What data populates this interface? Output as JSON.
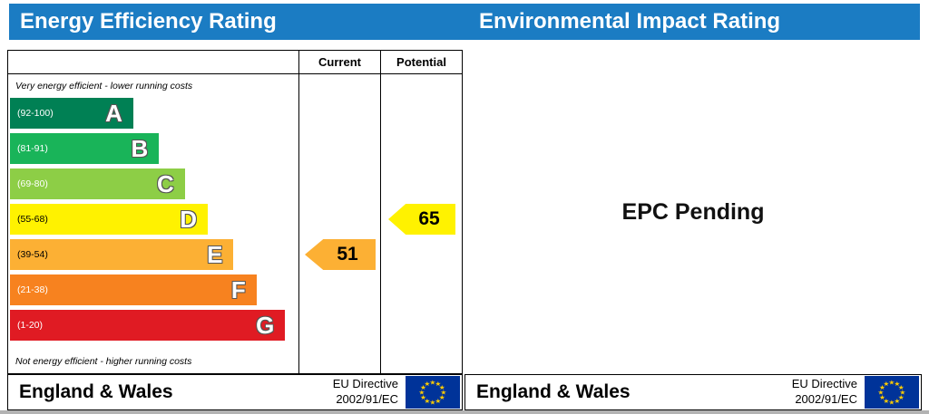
{
  "colors": {
    "header_blue": "#1b7cc3",
    "eu_flag_bg": "#003399",
    "eu_flag_star": "#ffcc00"
  },
  "left_panel": {
    "title": "Energy Efficiency Rating",
    "col_current": "Current",
    "col_potential": "Potential",
    "note_top": "Very energy efficient - lower running costs",
    "note_bottom": "Not energy efficient - higher running costs",
    "bands": [
      {
        "letter": "A",
        "range": "(92-100)",
        "color": "#008054",
        "range_text_color": "#ffffff",
        "width_pct": 43
      },
      {
        "letter": "B",
        "range": "(81-91)",
        "color": "#19b459",
        "range_text_color": "#ffffff",
        "width_pct": 52
      },
      {
        "letter": "C",
        "range": "(69-80)",
        "color": "#8dce46",
        "range_text_color": "#ffffff",
        "width_pct": 61
      },
      {
        "letter": "D",
        "range": "(55-68)",
        "color": "#fff200",
        "range_text_color": "#000000",
        "width_pct": 69
      },
      {
        "letter": "E",
        "range": "(39-54)",
        "color": "#fcb034",
        "range_text_color": "#000000",
        "width_pct": 78
      },
      {
        "letter": "F",
        "range": "(21-38)",
        "color": "#f7821f",
        "range_text_color": "#ffffff",
        "width_pct": 86
      },
      {
        "letter": "G",
        "range": "(1-20)",
        "color": "#e01b23",
        "range_text_color": "#ffffff",
        "width_pct": 96
      }
    ],
    "current": {
      "value": "51",
      "band": "E",
      "color": "#fcb034"
    },
    "potential": {
      "value": "65",
      "band": "D",
      "color": "#fff200"
    }
  },
  "right_panel": {
    "title": "Environmental Impact Rating",
    "pending": "EPC Pending"
  },
  "footer": {
    "region": "England & Wales",
    "directive_line1": "EU Directive",
    "directive_line2": "2002/91/EC"
  },
  "chart_data": {
    "type": "bar",
    "title": "Energy Efficiency Rating",
    "categories": [
      "A",
      "B",
      "C",
      "D",
      "E",
      "F",
      "G"
    ],
    "ranges": [
      "92-100",
      "81-91",
      "69-80",
      "55-68",
      "39-54",
      "21-38",
      "1-20"
    ],
    "bar_length_pct": [
      43,
      52,
      61,
      69,
      78,
      86,
      96
    ],
    "band_colors": [
      "#008054",
      "#19b459",
      "#8dce46",
      "#fff200",
      "#fcb034",
      "#f7821f",
      "#e01b23"
    ],
    "columns": [
      "Current",
      "Potential"
    ],
    "current": {
      "value": 51,
      "band": "E"
    },
    "potential": {
      "value": 65,
      "band": "D"
    },
    "legend_position": "none",
    "grid": false
  }
}
